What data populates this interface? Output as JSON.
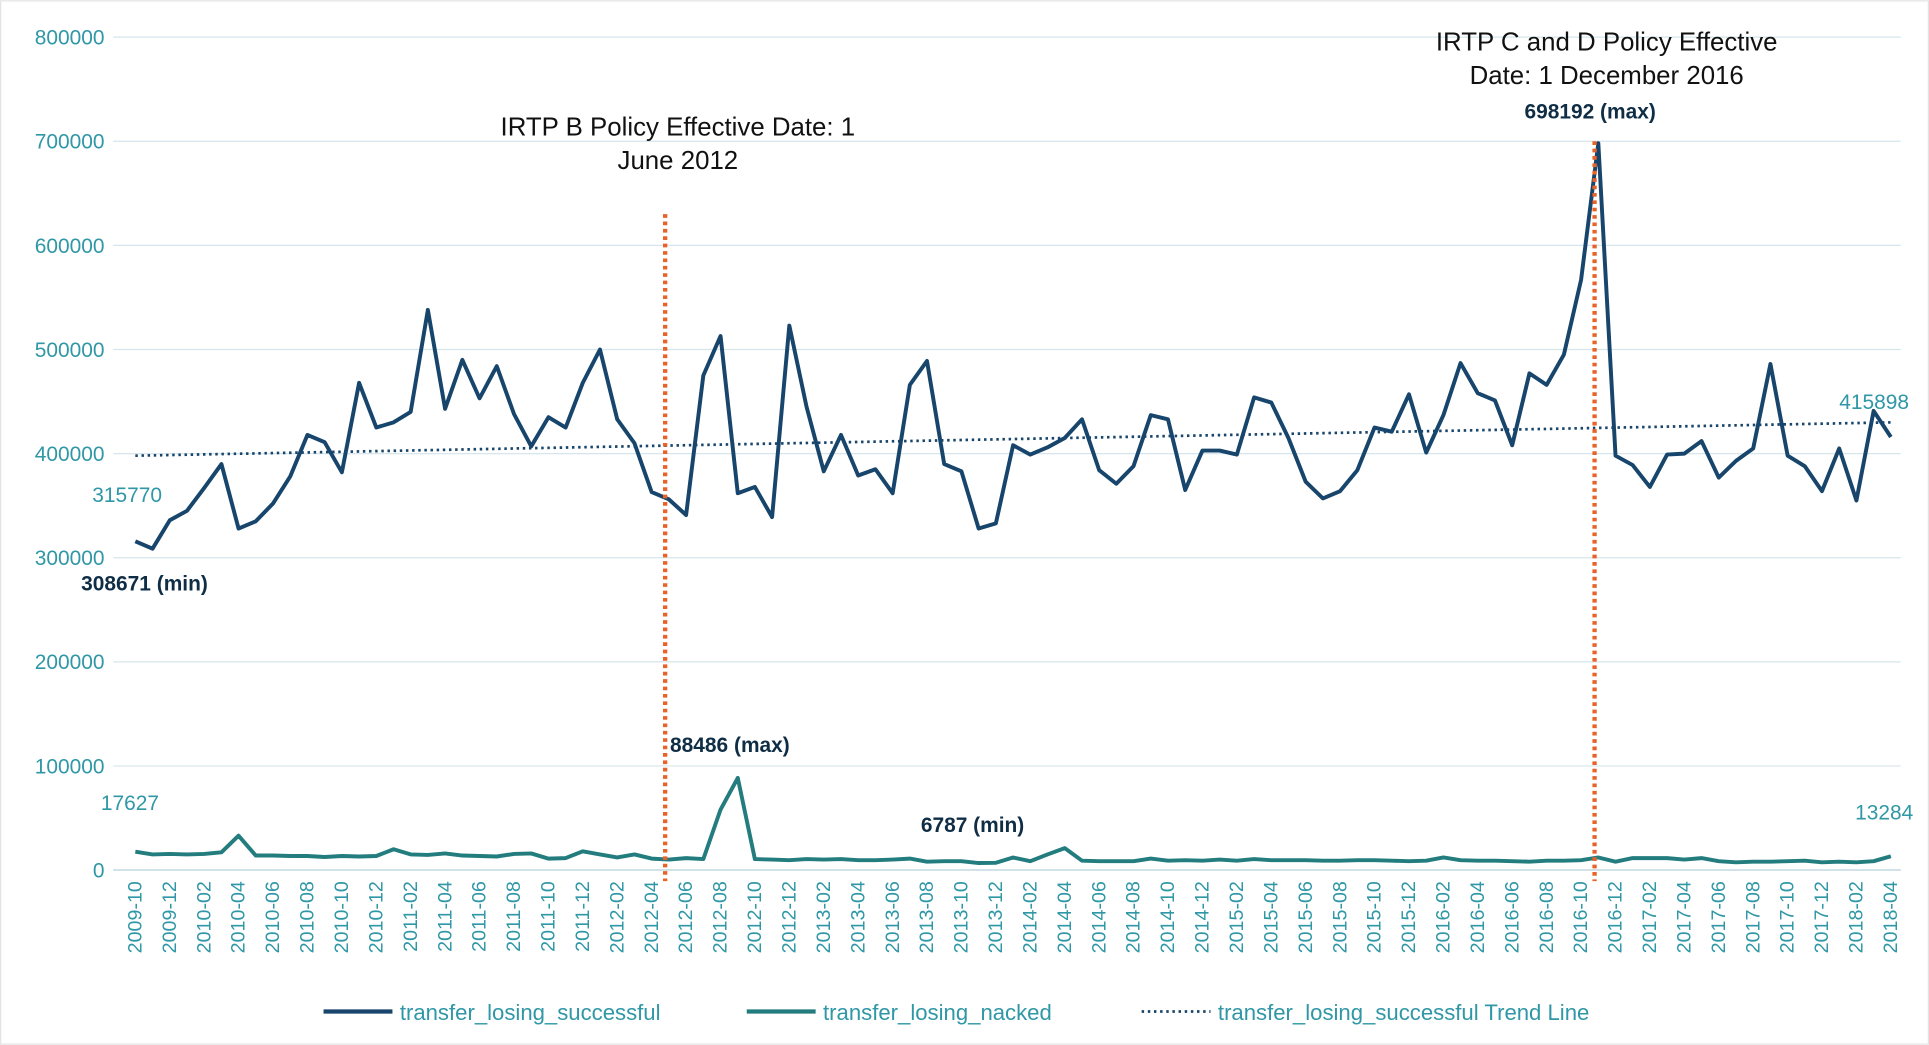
{
  "chart_data": {
    "type": "line",
    "categories": [
      "2009-10",
      null,
      "2009-12",
      null,
      "2010-02",
      null,
      "2010-04",
      null,
      "2010-06",
      null,
      "2010-08",
      null,
      "2010-10",
      null,
      "2010-12",
      null,
      "2011-02",
      null,
      "2011-04",
      null,
      "2011-06",
      null,
      "2011-08",
      null,
      "2011-10",
      null,
      "2011-12",
      null,
      "2012-02",
      null,
      "2012-04",
      null,
      "2012-06",
      null,
      "2012-08",
      null,
      "2012-10",
      null,
      "2012-12",
      null,
      "2013-02",
      null,
      "2013-04",
      null,
      "2013-06",
      null,
      "2013-08",
      null,
      "2013-10",
      null,
      "2013-12",
      null,
      "2014-02",
      null,
      "2014-04",
      null,
      "2014-06",
      null,
      "2014-08",
      null,
      "2014-10",
      null,
      "2014-12",
      null,
      "2015-02",
      null,
      "2015-04",
      null,
      "2015-06",
      null,
      "2015-08",
      null,
      "2015-10",
      null,
      "2015-12",
      null,
      "2016-02",
      null,
      "2016-04",
      null,
      "2016-06",
      null,
      "2016-08",
      null,
      "2016-10",
      null,
      "2016-12",
      null,
      "2017-02",
      null,
      "2017-04",
      null,
      "2017-06",
      null,
      "2017-08",
      null,
      "2017-10",
      null,
      "2017-12",
      null,
      "2018-02",
      null,
      "2018-04"
    ],
    "series": [
      {
        "name": "transfer_losing_successful",
        "color": "#17456b",
        "values": [
          315770,
          308671,
          336000,
          345000,
          367000,
          390000,
          328000,
          335000,
          352000,
          378000,
          418000,
          411000,
          382000,
          468000,
          425000,
          430000,
          440000,
          538000,
          443000,
          490000,
          453000,
          484000,
          438000,
          407000,
          435000,
          425000,
          468000,
          500000,
          433000,
          410000,
          363000,
          356000,
          341000,
          475000,
          513000,
          362000,
          368000,
          339000,
          523000,
          445000,
          383000,
          418000,
          379000,
          385000,
          362000,
          466000,
          489000,
          390000,
          383000,
          328000,
          333000,
          408000,
          399000,
          406000,
          415000,
          433000,
          384000,
          371000,
          388000,
          437000,
          433000,
          365000,
          403000,
          403000,
          399000,
          454000,
          449000,
          415000,
          373000,
          357000,
          364000,
          384000,
          425000,
          421000,
          457000,
          401000,
          437000,
          487000,
          458000,
          451000,
          408000,
          477000,
          466000,
          495000,
          567000,
          698192,
          398000,
          389000,
          368000,
          399000,
          400000,
          412000,
          377000,
          393000,
          405000,
          486000,
          398000,
          388000,
          364000,
          405000,
          355000,
          441000,
          415898
        ],
        "value_labels": {
          "0": "315770",
          "1": "308671 (min)",
          "85": "698192 (max)",
          "102": "415898"
        }
      },
      {
        "name": "transfer_losing_nacked",
        "color": "#237c7d",
        "values": [
          17627,
          15000,
          15500,
          15000,
          15500,
          17000,
          33000,
          14000,
          14000,
          13500,
          13500,
          12500,
          13500,
          13000,
          13500,
          20000,
          15000,
          14500,
          16000,
          14000,
          13500,
          13000,
          15500,
          16000,
          11000,
          11500,
          18000,
          15000,
          12000,
          15000,
          11000,
          10000,
          11500,
          10500,
          58000,
          88486,
          10500,
          10000,
          9500,
          10500,
          10000,
          10500,
          9500,
          9500,
          10000,
          11000,
          8000,
          8500,
          8500,
          6787,
          7000,
          12000,
          8500,
          15000,
          21000,
          9000,
          8500,
          8500,
          8500,
          11000,
          9000,
          9500,
          9000,
          10000,
          9000,
          10500,
          9500,
          9500,
          9500,
          9000,
          9000,
          9500,
          9500,
          9000,
          8500,
          9000,
          12000,
          9500,
          9000,
          9000,
          8500,
          8000,
          9000,
          9000,
          9500,
          12000,
          8000,
          11500,
          11500,
          11500,
          10000,
          11500,
          8500,
          7500,
          8000,
          8000,
          8500,
          9000,
          7500,
          8000,
          7500,
          8500,
          13284
        ],
        "value_labels": {
          "0": "17627",
          "35": "88486 (max)",
          "49": "6787 (min)",
          "102": "13284"
        }
      }
    ],
    "trend_line": {
      "name": "transfer_losing_successful Trend Line",
      "color": "#17456b",
      "from": 398000,
      "to": 430000
    },
    "policy_lines": [
      {
        "at": "2012-06",
        "color": "#e8622a",
        "top": 630000,
        "text": [
          "IRTP B Policy Effective Date: 1",
          "June 2012"
        ]
      },
      {
        "at": "2016-12",
        "color": "#e8622a",
        "top": 700000,
        "text": [
          "IRTP C and D Policy Effective",
          "Date: 1 December 2016"
        ]
      }
    ],
    "ylim": [
      0,
      800000
    ],
    "yticks": [
      0,
      100000,
      200000,
      300000,
      400000,
      500000,
      600000,
      700000,
      800000
    ],
    "grid": true,
    "legend": "bottom"
  }
}
